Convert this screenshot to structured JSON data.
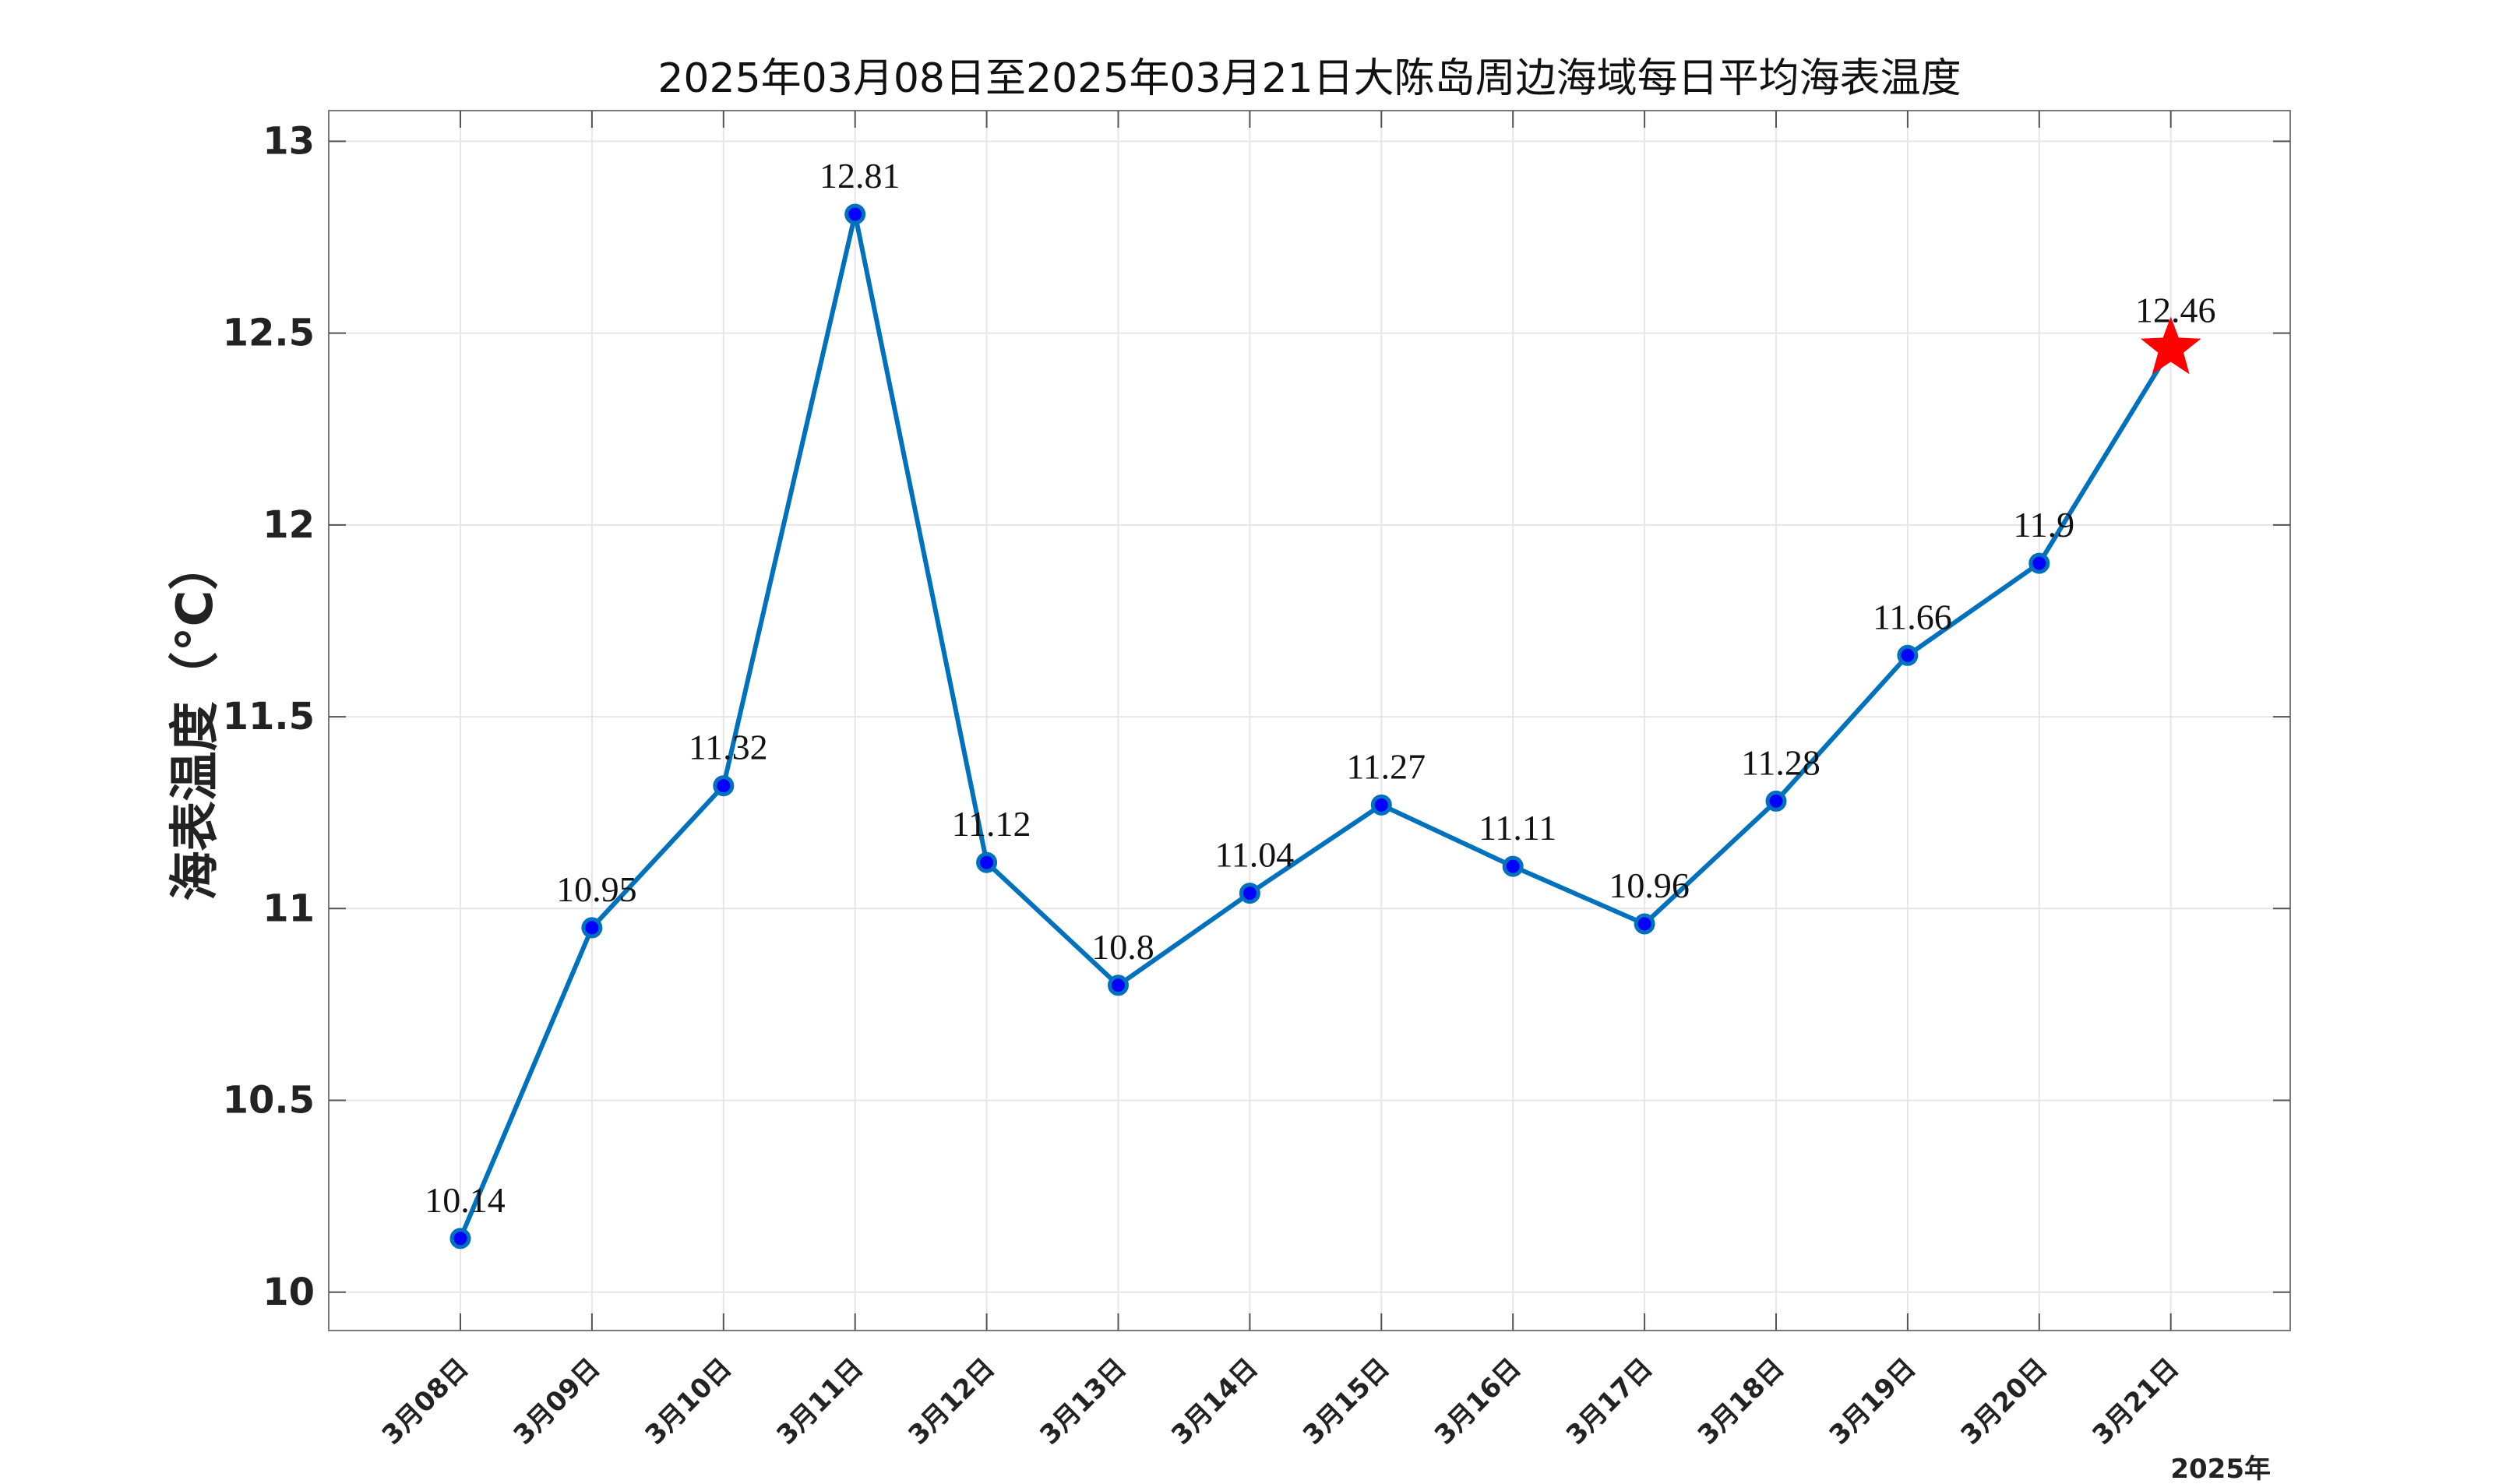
{
  "chart_data": {
    "type": "line",
    "title": "2025年03月08日至2025年03月21日大陈岛周边海域每日平均海表温度",
    "xlabel": "",
    "ylabel": "海表温度（°C）",
    "x_suffix_label": "2025年",
    "categories": [
      "3月08日",
      "3月09日",
      "3月10日",
      "3月11日",
      "3月12日",
      "3月13日",
      "3月14日",
      "3月15日",
      "3月16日",
      "3月17日",
      "3月18日",
      "3月19日",
      "3月20日",
      "3月21日"
    ],
    "series": [
      {
        "values": [
          10.14,
          10.95,
          11.32,
          12.81,
          11.12,
          10.8,
          11.04,
          11.27,
          11.11,
          10.96,
          11.28,
          11.66,
          11.9,
          12.46
        ],
        "data_labels": [
          "10.14",
          "10.95",
          "11.32",
          "12.81",
          "11.12",
          "10.8",
          "11.04",
          "11.27",
          "11.11",
          "10.96",
          "11.28",
          "11.66",
          "11.9",
          "12.46"
        ],
        "color": "#0072BD",
        "marker_color": "#0000FF",
        "last_point_marker": "star",
        "last_point_color": "#FF0000"
      }
    ],
    "ylim": [
      9.9,
      13.08
    ],
    "yticks": [
      10,
      10.5,
      11,
      11.5,
      12,
      12.5,
      13
    ],
    "ytick_labels": [
      "10",
      "10.5",
      "11",
      "11.5",
      "12",
      "12.5",
      "13"
    ],
    "grid": true
  }
}
